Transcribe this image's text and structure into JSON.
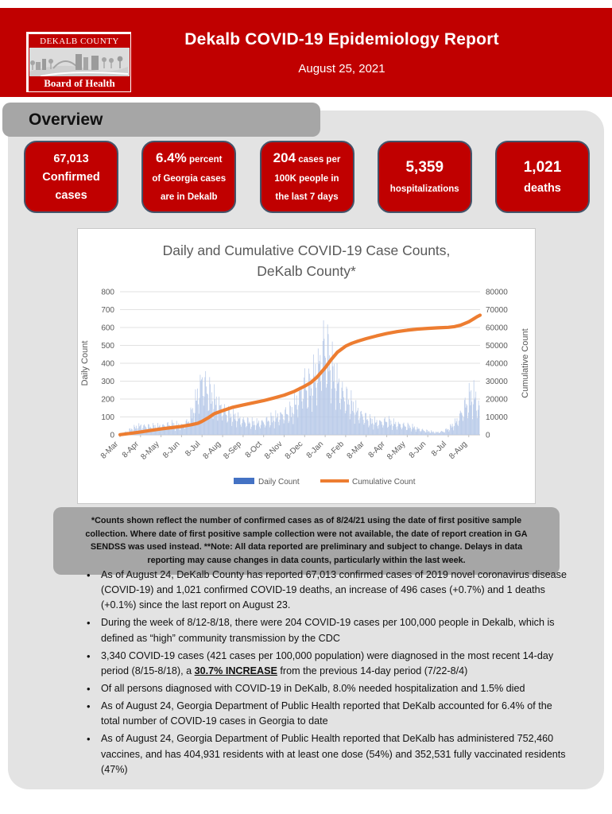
{
  "header": {
    "title": "Dekalb COVID-19 Epidemiology Report",
    "date": "August 25, 2021",
    "logo_top": "DEKALB COUNTY",
    "logo_bottom": "Board of Health"
  },
  "overview": {
    "heading": "Overview",
    "cards": [
      {
        "lines": [
          [
            {
              "t": "67,013",
              "size": "md"
            }
          ],
          [
            {
              "t": "Confirmed",
              "size": "md"
            }
          ],
          [
            {
              "t": "cases",
              "size": "md"
            }
          ]
        ]
      },
      {
        "lines": [
          [
            {
              "t": "6.4%",
              "size": "lg"
            },
            {
              "t": " percent",
              "size": "sm"
            }
          ],
          [
            {
              "t": "of Georgia cases",
              "size": "sm"
            }
          ],
          [
            {
              "t": "are in Dekalb",
              "size": "sm"
            }
          ]
        ]
      },
      {
        "lines": [
          [
            {
              "t": "204",
              "size": "lg"
            },
            {
              "t": " cases per",
              "size": "sm"
            }
          ],
          [
            {
              "t": "100K people in",
              "size": "sm"
            }
          ],
          [
            {
              "t": "the last 7 days",
              "size": "sm"
            }
          ]
        ]
      },
      {
        "lines": [
          [
            {
              "t": "5,359",
              "size": "xl"
            }
          ],
          [
            {
              "t": "hospitalizations",
              "size": "sm"
            }
          ]
        ]
      },
      {
        "lines": [
          [
            {
              "t": "1,021",
              "size": "xl"
            }
          ],
          [
            {
              "t": "deaths",
              "size": "md"
            }
          ]
        ]
      }
    ]
  },
  "note": {
    "text": "*Counts shown reflect the number of confirmed cases as of 8/24/21 using the date of first positive sample collection. Where date of first positive sample collection were not available, the date of report creation in GA SENDSS was used instead. **Note: All data reported are preliminary and subject to change. Delays in data reporting may cause changes in data counts, particularly within the last week."
  },
  "bullets": [
    [
      {
        "t": "As of August 24, DeKalb County has reported 67,013 confirmed cases of 2019 novel coronavirus disease (COVID-19) and 1,021 confirmed COVID-19 deaths, an increase of 496 cases (+0.7%) and 1 deaths (+0.1%) since the last report on August 23."
      }
    ],
    [
      {
        "t": "During the week of 8/12-8/18, there were 204 COVID-19 cases per 100,000 people in Dekalb, which is defined as “high” community transmission by the CDC"
      }
    ],
    [
      {
        "t": "3,340 COVID-19 cases (421 cases per 100,000 population) were diagnosed in the most recent 14-day period (8/15-8/18), a "
      },
      {
        "t": "30.7% INCREASE",
        "bold": true,
        "underline": true
      },
      {
        "t": " from the previous 14-day period (7/22-8/4)"
      }
    ],
    [
      {
        "t": "Of all persons diagnosed with COVID-19 in DeKalb, 8.0% needed hospitalization and 1.5% died"
      }
    ],
    [
      {
        "t": "As of August 24, Georgia Department of Public Health reported that DeKalb accounted for 6.4% of the total number of COVID-19 cases in Georgia to date"
      }
    ],
    [
      {
        "t": "As of August 24, Georgia Department of Public Health reported that DeKalb has administered 752,460 vaccines, and has 404,931 residents with at least one dose (54%) and 352,531 fully vaccinated residents (47%)"
      }
    ]
  ],
  "colors": {
    "banner_red": "#C00000",
    "card_red": "#C00000",
    "card_border_blue": "#44546A",
    "container_gray": "#E3E3E3",
    "tab_gray": "#A6A6A6",
    "note_gray": "#A6A6A6",
    "chart_text_gray": "#595959",
    "daily_bar_blue": "#B7C9E8",
    "legend_bar_blue": "#4472C4",
    "cumulative_orange": "#ED7D31"
  },
  "chart_data": {
    "type": "combo_bar_line",
    "title_line1": "Daily and Cumulative COVID-19 Case Counts,",
    "title_line2": "DeKalb County*",
    "left_axis": {
      "label": "Daily Count",
      "min": 0,
      "max": 800,
      "tick_step": 100
    },
    "right_axis": {
      "label": "Cumulative Count",
      "min": 0,
      "max": 80000,
      "tick_step": 10000
    },
    "x_axis": {
      "tick_labels": [
        "8-Mar",
        "8-Apr",
        "8-May",
        "8-Jun",
        "8-Jul",
        "8-Aug",
        "8-Sep",
        "8-Oct",
        "8-Nov",
        "8-Dec",
        "8-Jan",
        "8-Feb",
        "8-Mar",
        "8-Apr",
        "8-May",
        "8-Jun",
        "8-Jul",
        "8-Aug"
      ],
      "months_span": 17.55
    },
    "grid": true,
    "legend_position": "bottom",
    "legend": [
      {
        "label": "Daily Count",
        "color": "#4472C4",
        "marker": "bar"
      },
      {
        "label": "Cumulative Count",
        "color": "#ED7D31",
        "marker": "line"
      }
    ],
    "series": {
      "daily": {
        "name": "Daily Count",
        "bar_color": "#B7C9E8",
        "envelope_anchors_month_value": [
          [
            0,
            5
          ],
          [
            0.3,
            25
          ],
          [
            0.6,
            50
          ],
          [
            1,
            75
          ],
          [
            1.5,
            65
          ],
          [
            2,
            72
          ],
          [
            2.5,
            85
          ],
          [
            3,
            75
          ],
          [
            3.3,
            105
          ],
          [
            3.6,
            210
          ],
          [
            3.85,
            360
          ],
          [
            4.0,
            445
          ],
          [
            4.15,
            420
          ],
          [
            4.4,
            330
          ],
          [
            4.7,
            260
          ],
          [
            5,
            215
          ],
          [
            5.4,
            160
          ],
          [
            6,
            120
          ],
          [
            6.5,
            95
          ],
          [
            7,
            105
          ],
          [
            7.5,
            135
          ],
          [
            8,
            170
          ],
          [
            8.4,
            200
          ],
          [
            8.7,
            300
          ],
          [
            9,
            430
          ],
          [
            9.2,
            390
          ],
          [
            9.5,
            470
          ],
          [
            9.75,
            590
          ],
          [
            9.95,
            780
          ],
          [
            10.1,
            680
          ],
          [
            10.35,
            520
          ],
          [
            10.6,
            430
          ],
          [
            11,
            310
          ],
          [
            11.4,
            220
          ],
          [
            11.8,
            160
          ],
          [
            12.2,
            115
          ],
          [
            12.6,
            100
          ],
          [
            13,
            115
          ],
          [
            13.4,
            90
          ],
          [
            13.8,
            80
          ],
          [
            14.2,
            65
          ],
          [
            14.6,
            45
          ],
          [
            15,
            30
          ],
          [
            15.4,
            20
          ],
          [
            15.8,
            30
          ],
          [
            16.1,
            60
          ],
          [
            16.4,
            110
          ],
          [
            16.7,
            200
          ],
          [
            17,
            290
          ],
          [
            17.2,
            325
          ],
          [
            17.35,
            300
          ],
          [
            17.5,
            230
          ],
          [
            17.55,
            130
          ]
        ],
        "weekly_pattern": [
          1.0,
          0.88,
          0.72,
          0.82,
          0.62,
          0.38,
          0.55
        ]
      },
      "cumulative": {
        "name": "Cumulative Count",
        "line_color": "#ED7D31",
        "points_month_value": [
          [
            0,
            100
          ],
          [
            0.5,
            800
          ],
          [
            1,
            1600
          ],
          [
            1.5,
            2500
          ],
          [
            2,
            3300
          ],
          [
            2.5,
            4000
          ],
          [
            3,
            4700
          ],
          [
            3.5,
            5700
          ],
          [
            3.8,
            6500
          ],
          [
            4,
            7500
          ],
          [
            4.3,
            9500
          ],
          [
            4.6,
            11800
          ],
          [
            5,
            13500
          ],
          [
            5.5,
            15400
          ],
          [
            6,
            16700
          ],
          [
            6.5,
            17900
          ],
          [
            7,
            19100
          ],
          [
            7.5,
            20600
          ],
          [
            8,
            22200
          ],
          [
            8.5,
            24300
          ],
          [
            9,
            27200
          ],
          [
            9.3,
            29200
          ],
          [
            9.6,
            32200
          ],
          [
            10,
            37500
          ],
          [
            10.3,
            42200
          ],
          [
            10.6,
            46200
          ],
          [
            11,
            49600
          ],
          [
            11.3,
            51200
          ],
          [
            11.6,
            52400
          ],
          [
            12,
            53800
          ],
          [
            12.5,
            55300
          ],
          [
            13,
            56600
          ],
          [
            13.5,
            57700
          ],
          [
            14,
            58500
          ],
          [
            14.5,
            59100
          ],
          [
            15,
            59500
          ],
          [
            15.5,
            59800
          ],
          [
            16,
            60100
          ],
          [
            16.3,
            60500
          ],
          [
            16.6,
            61300
          ],
          [
            17,
            63200
          ],
          [
            17.2,
            64600
          ],
          [
            17.4,
            66000
          ],
          [
            17.55,
            66900
          ]
        ]
      }
    }
  }
}
